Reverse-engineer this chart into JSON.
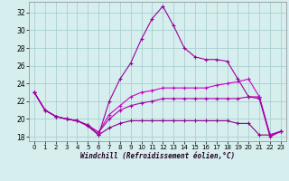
{
  "xlabel": "Windchill (Refroidissement éolien,°C)",
  "background_color": "#d6eeee",
  "grid_color": "#aacfcf",
  "xlim": [
    -0.5,
    23.5
  ],
  "ylim": [
    17.5,
    33.2
  ],
  "yticks": [
    18,
    20,
    22,
    24,
    26,
    28,
    30,
    32
  ],
  "xticks": [
    0,
    1,
    2,
    3,
    4,
    5,
    6,
    7,
    8,
    9,
    10,
    11,
    12,
    13,
    14,
    15,
    16,
    17,
    18,
    19,
    20,
    21,
    22,
    23
  ],
  "series": [
    {
      "color": "#880088",
      "x": [
        0,
        1,
        2,
        3,
        4,
        5,
        6,
        7,
        8,
        9,
        10,
        11,
        12,
        13,
        14,
        15,
        16,
        17,
        18,
        19,
        20,
        21,
        22,
        23
      ],
      "y": [
        23,
        21,
        20.3,
        20,
        19.8,
        19.2,
        18.2,
        19.0,
        19.5,
        19.8,
        19.8,
        19.8,
        19.8,
        19.8,
        19.8,
        19.8,
        19.8,
        19.8,
        19.8,
        19.5,
        19.5,
        18.2,
        18.2,
        18.6
      ]
    },
    {
      "color": "#aa00aa",
      "x": [
        0,
        1,
        2,
        3,
        4,
        5,
        6,
        7,
        8,
        9,
        10,
        11,
        12,
        13,
        14,
        15,
        16,
        17,
        18,
        19,
        20,
        21,
        22,
        23
      ],
      "y": [
        23,
        21,
        20.3,
        20,
        19.8,
        19.3,
        18.5,
        20.0,
        21.0,
        21.5,
        21.8,
        22.0,
        22.3,
        22.3,
        22.3,
        22.3,
        22.3,
        22.3,
        22.3,
        22.3,
        22.5,
        22.5,
        18.2,
        18.6
      ]
    },
    {
      "color": "#cc00cc",
      "x": [
        0,
        1,
        2,
        3,
        4,
        5,
        6,
        7,
        8,
        9,
        10,
        11,
        12,
        13,
        14,
        15,
        16,
        17,
        18,
        19,
        20,
        21,
        22,
        23
      ],
      "y": [
        23,
        21,
        20.3,
        20,
        19.8,
        19.3,
        18.5,
        20.5,
        21.5,
        22.5,
        23.0,
        23.2,
        23.5,
        23.5,
        23.5,
        23.5,
        23.5,
        23.8,
        24.0,
        24.2,
        24.5,
        22.5,
        18.2,
        18.6
      ]
    },
    {
      "color": "#990099",
      "x": [
        0,
        1,
        2,
        3,
        4,
        5,
        6,
        7,
        8,
        9,
        10,
        11,
        12,
        13,
        14,
        15,
        16,
        17,
        18,
        19,
        20,
        21,
        22,
        23
      ],
      "y": [
        23,
        21,
        20.3,
        20,
        19.8,
        19.3,
        18.2,
        22.0,
        24.5,
        26.3,
        29.0,
        31.3,
        32.7,
        30.5,
        28.0,
        27.0,
        26.7,
        26.7,
        26.5,
        24.5,
        22.5,
        22.3,
        18.0,
        18.6
      ]
    }
  ]
}
